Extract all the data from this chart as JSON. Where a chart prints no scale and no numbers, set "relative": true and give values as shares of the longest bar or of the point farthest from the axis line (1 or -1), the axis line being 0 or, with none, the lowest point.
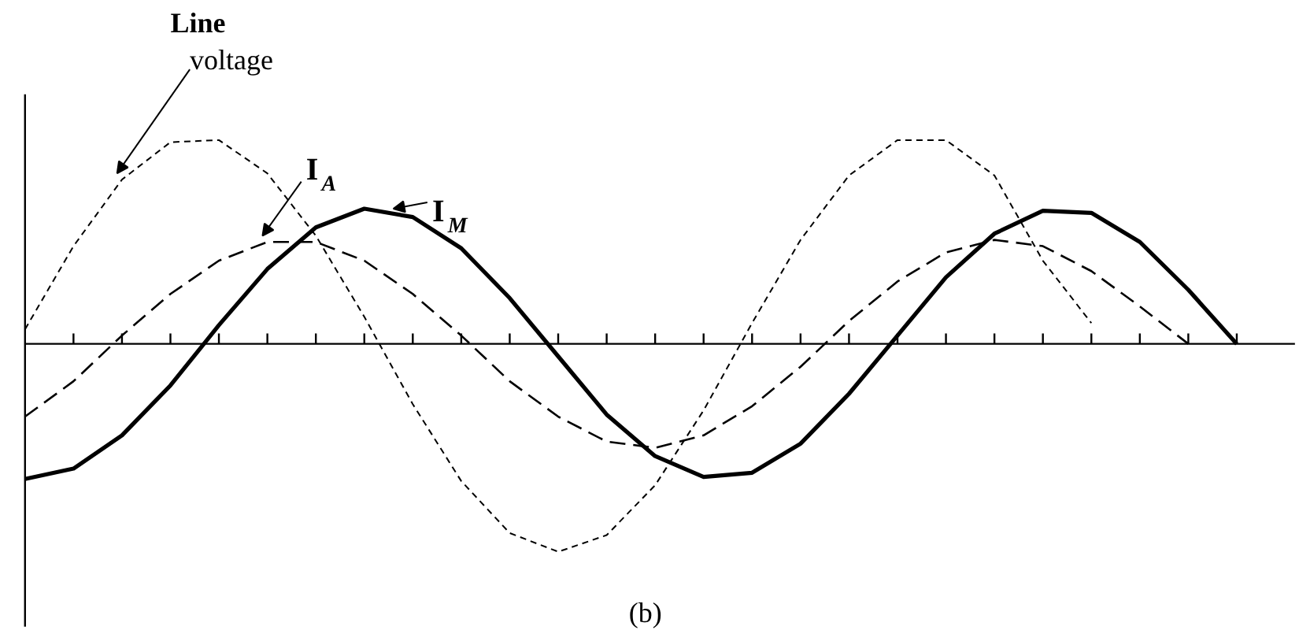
{
  "chart_data": {
    "type": "line",
    "relative": true,
    "categories": [
      null,
      null,
      null,
      null,
      null,
      null,
      null,
      null,
      null,
      null,
      null,
      null,
      null,
      null,
      null,
      null,
      null,
      null,
      null,
      null,
      null,
      null,
      null,
      null,
      null,
      null
    ],
    "series": [
      {
        "name": "Line voltage",
        "color": "#000000",
        "line_style": "dotted",
        "values": [
          0.07,
          0.47,
          0.79,
          0.97,
          0.98,
          0.82,
          0.52,
          0.13,
          -0.29,
          -0.66,
          -0.91,
          -1,
          -0.92,
          -0.68,
          -0.32,
          0.1,
          0.5,
          0.81,
          0.98,
          0.98,
          0.81,
          0.4,
          0.1,
          null,
          null,
          null
        ]
      },
      {
        "name": "I$_{A}$",
        "color": "#000000",
        "line_style": "dashed",
        "values": [
          -0.35,
          -0.18,
          0.04,
          0.24,
          0.4,
          0.49,
          0.49,
          0.4,
          0.24,
          0.04,
          -0.18,
          -0.35,
          -0.47,
          -0.5,
          -0.44,
          -0.3,
          -0.11,
          0.11,
          0.3,
          0.44,
          0.5,
          0.47,
          0.35,
          0.18,
          0.0,
          null
        ]
      },
      {
        "name": "I$_{M}$",
        "color": "#000000",
        "line_style": "solid",
        "values": [
          -0.65,
          -0.6,
          -0.44,
          -0.2,
          0.09,
          0.36,
          0.56,
          0.65,
          0.61,
          0.46,
          0.22,
          -0.06,
          -0.34,
          -0.54,
          -0.64,
          -0.62,
          -0.48,
          -0.24,
          0.04,
          0.32,
          0.53,
          0.64,
          0.63,
          0.49,
          0.26,
          0.0
        ]
      }
    ],
    "annotations": [
      "(b)"
    ]
  }
}
